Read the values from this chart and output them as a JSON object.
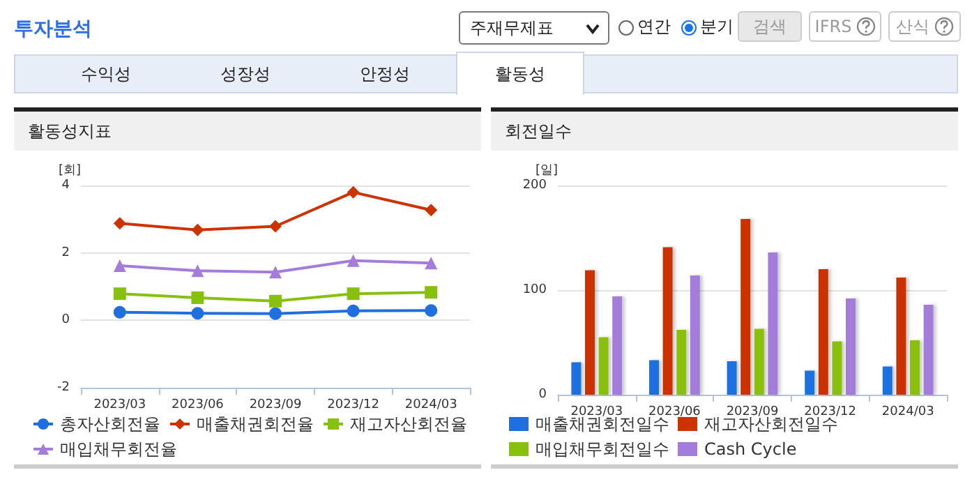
{
  "chart_data": [
    {
      "type": "other",
      "title": "투자분석",
      "annotations": [
        "주재무제표",
        "연간",
        "분기",
        "검색",
        "IFRS",
        "산식",
        "수익성",
        "성장성",
        "안정성",
        "활동성"
      ]
    },
    {
      "type": "line",
      "title": "활동성지표",
      "ylabel": "[회]",
      "categories": [
        "2023/03",
        "2023/06",
        "2023/09",
        "2023/12",
        "2024/03"
      ],
      "ylim": [
        -2,
        4
      ],
      "yticks": [
        -2,
        0,
        2,
        4
      ],
      "grid": "y",
      "legend": "bottom",
      "series": [
        {
          "name": "총자산회전율",
          "color": "#1f6fe0",
          "marker": "circle",
          "values": [
            0.24,
            0.21,
            0.2,
            0.28,
            0.29
          ]
        },
        {
          "name": "매출채권회전율",
          "color": "#cc3300",
          "marker": "diamond",
          "values": [
            2.88,
            2.68,
            2.79,
            3.8,
            3.27
          ]
        },
        {
          "name": "재고자산회전율",
          "color": "#88c010",
          "marker": "square",
          "values": [
            0.79,
            0.67,
            0.57,
            0.79,
            0.83
          ]
        },
        {
          "name": "매입채무회전율",
          "color": "#a47ddb",
          "marker": "triangle",
          "values": [
            1.62,
            1.47,
            1.43,
            1.77,
            1.7
          ]
        }
      ]
    },
    {
      "type": "bar",
      "title": "회전일수",
      "ylabel": "[일]",
      "categories": [
        "2023/03",
        "2023/06",
        "2023/09",
        "2023/12",
        "2024/03"
      ],
      "ylim": [
        0,
        200
      ],
      "yticks": [
        0,
        100,
        200
      ],
      "grid": "y",
      "legend": "bottom",
      "series": [
        {
          "name": "매출채권회전일수",
          "color": "#1f6fe0",
          "values": [
            31,
            33,
            32,
            23,
            27
          ]
        },
        {
          "name": "재고자산회전일수",
          "color": "#cc3300",
          "values": [
            119,
            141,
            168,
            120,
            112
          ]
        },
        {
          "name": "매입채무회전일수",
          "color": "#88c010",
          "values": [
            55,
            62,
            63,
            51,
            52
          ]
        },
        {
          "name": "Cash Cycle",
          "color": "#a47ddb",
          "values": [
            94,
            114,
            136,
            92,
            86
          ]
        }
      ]
    }
  ]
}
